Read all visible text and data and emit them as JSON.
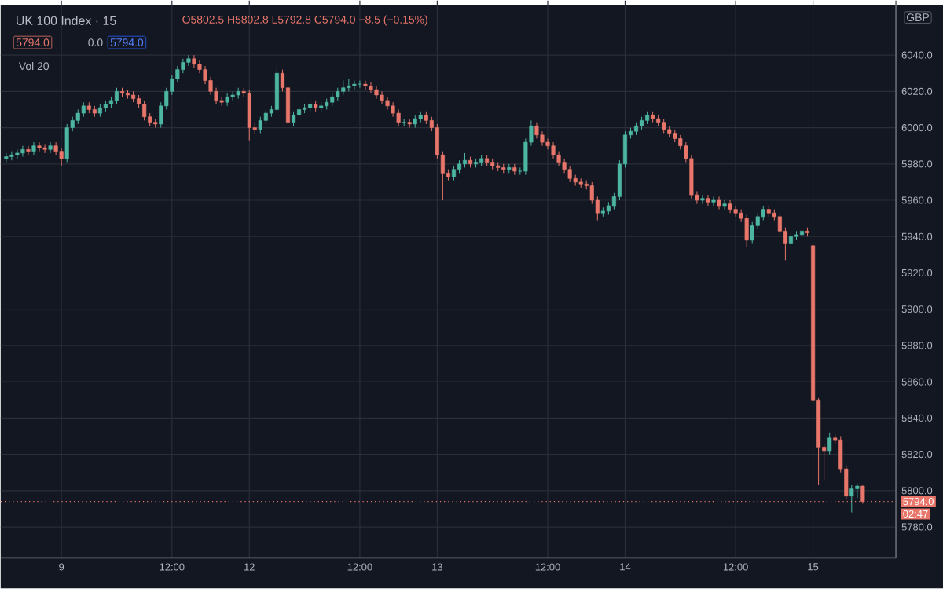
{
  "chart_data": {
    "type": "candlestick",
    "title": "UK 100 Index · 15",
    "annotations": [
      "O5802.5 H5802.8 L5792.8 C5794.0 −8.5 (−0.15%)",
      "5794.0",
      "0.0",
      "5794.0",
      "Vol 20",
      "02:47",
      "GBP"
    ],
    "categories": [
      null,
      null,
      null,
      null,
      null,
      null,
      null,
      null,
      null,
      null,
      "9",
      null,
      null,
      null,
      null,
      null,
      null,
      null,
      null,
      null,
      null,
      null,
      null,
      null,
      null,
      null,
      null,
      null,
      null,
      null,
      "12:00",
      null,
      null,
      null,
      null,
      null,
      null,
      null,
      null,
      null,
      null,
      null,
      null,
      null,
      "12",
      null,
      null,
      null,
      null,
      null,
      null,
      null,
      null,
      null,
      null,
      null,
      null,
      null,
      null,
      null,
      null,
      null,
      null,
      null,
      "12:00",
      null,
      null,
      null,
      null,
      null,
      null,
      null,
      null,
      null,
      null,
      null,
      null,
      null,
      "13",
      null,
      null,
      null,
      null,
      null,
      null,
      null,
      null,
      null,
      null,
      null,
      null,
      null,
      null,
      null,
      null,
      null,
      null,
      null,
      "12:00",
      null,
      null,
      null,
      null,
      null,
      null,
      null,
      null,
      null,
      null,
      null,
      null,
      null,
      "14",
      null,
      null,
      null,
      null,
      null,
      null,
      null,
      null,
      null,
      null,
      null,
      null,
      null,
      null,
      null,
      null,
      null,
      null,
      null,
      "12:00",
      null,
      null,
      null,
      null,
      null,
      null,
      null,
      null,
      null,
      null,
      null,
      null,
      null,
      "15",
      null,
      null,
      null,
      null,
      null,
      null,
      null,
      null,
      null
    ],
    "ohlc": [
      [
        5983,
        5986,
        5981,
        5984
      ],
      [
        5984,
        5987,
        5982,
        5985
      ],
      [
        5985,
        5988,
        5983,
        5986
      ],
      [
        5986,
        5990,
        5984,
        5988
      ],
      [
        5988,
        5990,
        5985,
        5987
      ],
      [
        5987,
        5992,
        5985,
        5990
      ],
      [
        5990,
        5992,
        5987,
        5989
      ],
      [
        5989,
        5991,
        5986,
        5988
      ],
      [
        5988,
        5992,
        5986,
        5990
      ],
      [
        5990,
        5992,
        5985,
        5987
      ],
      [
        5987,
        5989,
        5979,
        5983
      ],
      [
        5983,
        6002,
        5981,
        6000
      ],
      [
        6000,
        6006,
        5998,
        6004
      ],
      [
        6004,
        6010,
        6002,
        6008
      ],
      [
        6008,
        6014,
        6006,
        6012
      ],
      [
        6012,
        6014,
        6008,
        6010
      ],
      [
        6010,
        6012,
        6006,
        6008
      ],
      [
        6008,
        6013,
        6006,
        6011
      ],
      [
        6011,
        6015,
        6009,
        6013
      ],
      [
        6013,
        6017,
        6011,
        6015
      ],
      [
        6015,
        6022,
        6013,
        6020
      ],
      [
        6020,
        6022,
        6017,
        6019
      ],
      [
        6019,
        6021,
        6016,
        6018
      ],
      [
        6018,
        6020,
        6014,
        6016
      ],
      [
        6016,
        6018,
        6011,
        6013
      ],
      [
        6013,
        6015,
        6004,
        6006
      ],
      [
        6006,
        6008,
        6001,
        6003
      ],
      [
        6003,
        6005,
        6000,
        6002
      ],
      [
        6002,
        6014,
        6000,
        6012
      ],
      [
        6012,
        6022,
        6010,
        6020
      ],
      [
        6020,
        6029,
        6018,
        6027
      ],
      [
        6027,
        6034,
        6025,
        6032
      ],
      [
        6032,
        6038,
        6030,
        6036
      ],
      [
        6036,
        6040,
        6034,
        6038
      ],
      [
        6038,
        6040,
        6033,
        6035
      ],
      [
        6035,
        6037,
        6030,
        6032
      ],
      [
        6032,
        6034,
        6024,
        6026
      ],
      [
        6026,
        6028,
        6018,
        6020
      ],
      [
        6020,
        6022,
        6013,
        6015
      ],
      [
        6015,
        6017,
        6012,
        6014
      ],
      [
        6014,
        6019,
        6012,
        6017
      ],
      [
        6017,
        6020,
        6015,
        6018
      ],
      [
        6018,
        6022,
        6016,
        6020
      ],
      [
        6020,
        6022,
        6017,
        6019
      ],
      [
        6019,
        6021,
        5993,
        6000
      ],
      [
        6000,
        6003,
        5997,
        5999
      ],
      [
        5999,
        6006,
        5997,
        6004
      ],
      [
        6004,
        6010,
        6002,
        6008
      ],
      [
        6008,
        6012,
        6006,
        6010
      ],
      [
        6010,
        6034,
        6008,
        6030
      ],
      [
        6030,
        6032,
        6020,
        6022
      ],
      [
        6022,
        6024,
        6001,
        6003
      ],
      [
        6003,
        6009,
        6001,
        6007
      ],
      [
        6007,
        6012,
        6005,
        6010
      ],
      [
        6010,
        6013,
        6008,
        6011
      ],
      [
        6011,
        6015,
        6009,
        6013
      ],
      [
        6013,
        6015,
        6009,
        6011
      ],
      [
        6011,
        6014,
        6009,
        6012
      ],
      [
        6012,
        6016,
        6010,
        6014
      ],
      [
        6014,
        6019,
        6012,
        6017
      ],
      [
        6017,
        6022,
        6015,
        6020
      ],
      [
        6020,
        6026,
        6018,
        6022
      ],
      [
        6022,
        6027,
        6020,
        6023
      ],
      [
        6023,
        6026,
        6021,
        6024
      ],
      [
        6024,
        6026,
        6022,
        6024
      ],
      [
        6024,
        6026,
        6021,
        6023
      ],
      [
        6023,
        6025,
        6019,
        6021
      ],
      [
        6021,
        6023,
        6016,
        6018
      ],
      [
        6018,
        6020,
        6013,
        6015
      ],
      [
        6015,
        6017,
        6010,
        6012
      ],
      [
        6012,
        6014,
        6006,
        6008
      ],
      [
        6008,
        6010,
        6001,
        6003
      ],
      [
        6003,
        6005,
        6001,
        6003
      ],
      [
        6003,
        6005,
        6000,
        6002
      ],
      [
        6002,
        6007,
        6000,
        6005
      ],
      [
        6005,
        6009,
        6003,
        6007
      ],
      [
        6007,
        6009,
        6002,
        6004
      ],
      [
        6004,
        6006,
        5998,
        6000
      ],
      [
        6000,
        6002,
        5983,
        5985
      ],
      [
        5985,
        5987,
        5960,
        5975
      ],
      [
        5975,
        5977,
        5971,
        5973
      ],
      [
        5973,
        5979,
        5971,
        5977
      ],
      [
        5977,
        5982,
        5975,
        5980
      ],
      [
        5980,
        5986,
        5978,
        5982
      ],
      [
        5982,
        5984,
        5978,
        5980
      ],
      [
        5980,
        5983,
        5978,
        5981
      ],
      [
        5981,
        5985,
        5979,
        5983
      ],
      [
        5983,
        5985,
        5979,
        5981
      ],
      [
        5981,
        5983,
        5977,
        5979
      ],
      [
        5979,
        5981,
        5976,
        5978
      ],
      [
        5978,
        5980,
        5975,
        5977
      ],
      [
        5977,
        5980,
        5975,
        5978
      ],
      [
        5978,
        5980,
        5974,
        5976
      ],
      [
        5976,
        5978,
        5974,
        5976
      ],
      [
        5976,
        5994,
        5974,
        5992
      ],
      [
        5992,
        6004,
        5990,
        6001
      ],
      [
        6001,
        6003,
        5994,
        5996
      ],
      [
        5996,
        5998,
        5990,
        5992
      ],
      [
        5992,
        5994,
        5988,
        5990
      ],
      [
        5990,
        5992,
        5983,
        5985
      ],
      [
        5985,
        5987,
        5979,
        5981
      ],
      [
        5981,
        5983,
        5975,
        5977
      ],
      [
        5977,
        5979,
        5970,
        5972
      ],
      [
        5972,
        5974,
        5968,
        5970
      ],
      [
        5970,
        5972,
        5967,
        5969
      ],
      [
        5969,
        5971,
        5966,
        5968
      ],
      [
        5968,
        5970,
        5958,
        5960
      ],
      [
        5960,
        5962,
        5949,
        5953
      ],
      [
        5953,
        5956,
        5951,
        5954
      ],
      [
        5954,
        5959,
        5952,
        5957
      ],
      [
        5957,
        5964,
        5955,
        5962
      ],
      [
        5962,
        5982,
        5960,
        5980
      ],
      [
        5980,
        5998,
        5978,
        5996
      ],
      [
        5996,
        6000,
        5994,
        5998
      ],
      [
        5998,
        6003,
        5996,
        6001
      ],
      [
        6001,
        6006,
        5999,
        6004
      ],
      [
        6004,
        6009,
        6002,
        6007
      ],
      [
        6007,
        6009,
        6003,
        6005
      ],
      [
        6005,
        6007,
        6001,
        6003
      ],
      [
        6003,
        6005,
        5997,
        5999
      ],
      [
        5999,
        6001,
        5995,
        5997
      ],
      [
        5997,
        5999,
        5992,
        5994
      ],
      [
        5994,
        5996,
        5988,
        5990
      ],
      [
        5990,
        5992,
        5981,
        5983
      ],
      [
        5983,
        5985,
        5961,
        5963
      ],
      [
        5963,
        5965,
        5958,
        5960
      ],
      [
        5960,
        5963,
        5958,
        5961
      ],
      [
        5961,
        5963,
        5957,
        5959
      ],
      [
        5959,
        5962,
        5957,
        5960
      ],
      [
        5960,
        5962,
        5955,
        5957
      ],
      [
        5957,
        5960,
        5955,
        5958
      ],
      [
        5958,
        5960,
        5953,
        5955
      ],
      [
        5955,
        5957,
        5951,
        5953
      ],
      [
        5953,
        5955,
        5948,
        5950
      ],
      [
        5950,
        5952,
        5934,
        5938
      ],
      [
        5938,
        5948,
        5936,
        5946
      ],
      [
        5946,
        5953,
        5944,
        5951
      ],
      [
        5951,
        5957,
        5949,
        5955
      ],
      [
        5955,
        5957,
        5951,
        5953
      ],
      [
        5953,
        5955,
        5949,
        5951
      ],
      [
        5951,
        5953,
        5941,
        5943
      ],
      [
        5943,
        5945,
        5927,
        5936
      ],
      [
        5936,
        5942,
        5934,
        5940
      ],
      [
        5940,
        5943,
        5938,
        5941
      ],
      [
        5941,
        5945,
        5939,
        5943
      ],
      [
        5943,
        5945,
        5940,
        5942
      ],
      [
        5935,
        5936,
        5848,
        5850
      ],
      [
        5850,
        5851,
        5803,
        5824
      ],
      [
        5824,
        5826,
        5806,
        5822
      ],
      [
        5822,
        5832,
        5820,
        5829
      ],
      [
        5829,
        5831,
        5826,
        5828
      ],
      [
        5828,
        5830,
        5810,
        5812
      ],
      [
        5812,
        5814,
        5795,
        5797
      ],
      [
        5797,
        5803,
        5788,
        5801
      ],
      [
        5801,
        5804,
        5796,
        5802.5
      ],
      [
        5802.5,
        5802.8,
        5792.8,
        5794.0
      ]
    ],
    "ylim": [
      5763,
      6070
    ],
    "yticks": [
      {
        "value": 5780,
        "label": "5780.0"
      },
      {
        "value": 5800,
        "label": "5800.0"
      },
      {
        "value": 5820,
        "label": "5820.0"
      },
      {
        "value": 5840,
        "label": "5840.0"
      },
      {
        "value": 5860,
        "label": "5860.0"
      },
      {
        "value": 5880,
        "label": "5880.0"
      },
      {
        "value": 5900,
        "label": "5900.0"
      },
      {
        "value": 5920,
        "label": "5920.0"
      },
      {
        "value": 5940,
        "label": "5940.0"
      },
      {
        "value": 5960,
        "label": "5960.0"
      },
      {
        "value": 5980,
        "label": "5980.0"
      },
      {
        "value": 6000,
        "label": "6000.0"
      },
      {
        "value": 6020,
        "label": "6020.0"
      },
      {
        "value": 6040,
        "label": "6040.0"
      }
    ],
    "grid": true,
    "ref_lines": [
      {
        "axis": "y",
        "value": 5794.0,
        "label": "5794.0",
        "color": "#e8766b",
        "line_style": "dotted"
      }
    ]
  }
}
